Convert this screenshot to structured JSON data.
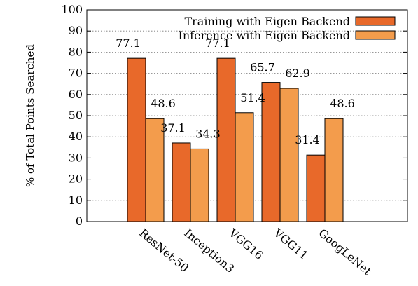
{
  "chart_data": {
    "type": "bar",
    "title": "",
    "xlabel": "",
    "ylabel": "% of Total Points Searched",
    "ylim": [
      0,
      100
    ],
    "yticks": [
      0,
      10,
      20,
      30,
      40,
      50,
      60,
      70,
      80,
      90,
      100
    ],
    "grid": true,
    "legend_position": "top-right",
    "categories": [
      "ResNet-50",
      "Inception3",
      "VGG16",
      "VGG11",
      "GoogLeNet"
    ],
    "series": [
      {
        "name": "Training with Eigen Backend",
        "color": "#e8692a",
        "values": [
          77.1,
          37.1,
          77.1,
          65.7,
          31.4
        ]
      },
      {
        "name": "Inference with Eigen Backend",
        "color": "#f39c4c",
        "values": [
          48.6,
          34.3,
          51.4,
          62.9,
          48.6
        ]
      }
    ]
  }
}
